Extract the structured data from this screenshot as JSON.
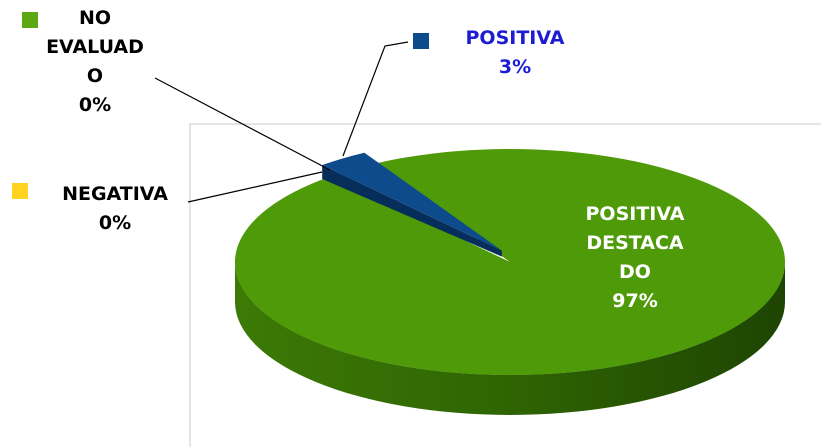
{
  "chart_data": {
    "type": "pie",
    "categories": [
      "POSITIVA DESTACADO",
      "POSITIVA",
      "NEGATIVA",
      "NO EVALUADO"
    ],
    "values": [
      97,
      3,
      0,
      0
    ],
    "value_labels": [
      "97%",
      "3%",
      "0%",
      "0%"
    ],
    "colors": [
      "#4f9a08",
      "#0d4b8c",
      "#ffd320",
      "#5aa812"
    ]
  }
}
